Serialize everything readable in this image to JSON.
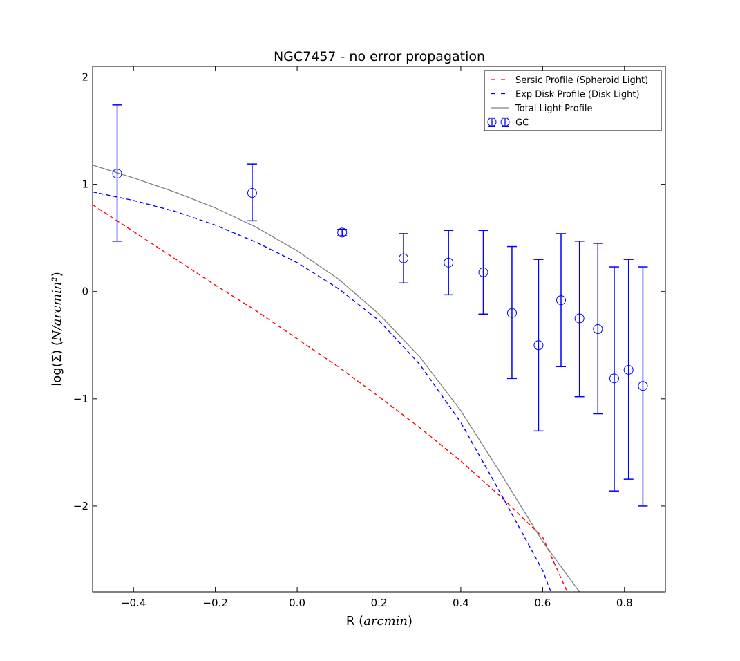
{
  "chart_data": {
    "type": "line",
    "title": "NGC7457 - no error propagation",
    "xlabel": {
      "prefix": "R (",
      "math": "arcmin",
      "suffix": ")"
    },
    "ylabel": {
      "prefix": "log(Σ) (",
      "math": "N/arcmin²",
      "suffix": ")"
    },
    "xlim": [
      -0.5,
      0.9
    ],
    "ylim": [
      -2.8,
      2.1
    ],
    "xticks": [
      -0.4,
      -0.2,
      0.0,
      0.2,
      0.4,
      0.6,
      0.8
    ],
    "xtick_labels": [
      "−0.4",
      "−0.2",
      "0.0",
      "0.2",
      "0.4",
      "0.6",
      "0.8"
    ],
    "yticks": [
      -2,
      -1,
      0,
      1,
      2
    ],
    "ytick_labels": [
      "−2",
      "−1",
      "0",
      "1",
      "2"
    ],
    "grid": false,
    "legend_position": "top-right",
    "series": [
      {
        "name": "Sersic Profile (Spheroid Light)",
        "kind": "line",
        "color": "#ff0000",
        "dash": "dashed",
        "x": [
          -0.5,
          -0.4,
          -0.3,
          -0.2,
          -0.1,
          0.0,
          0.1,
          0.2,
          0.3,
          0.4,
          0.5,
          0.6,
          0.66
        ],
        "y": [
          0.81,
          0.56,
          0.31,
          0.06,
          -0.18,
          -0.44,
          -0.7,
          -0.98,
          -1.27,
          -1.58,
          -1.92,
          -2.29,
          -2.8
        ]
      },
      {
        "name": "Exp Disk Profile (Disk Light)",
        "kind": "line",
        "color": "#0000ff",
        "dash": "dashed",
        "x": [
          -0.5,
          -0.4,
          -0.3,
          -0.2,
          -0.1,
          0.0,
          0.1,
          0.2,
          0.3,
          0.4,
          0.5,
          0.6,
          0.62
        ],
        "y": [
          0.93,
          0.85,
          0.75,
          0.62,
          0.46,
          0.27,
          0.03,
          -0.27,
          -0.68,
          -1.22,
          -1.9,
          -2.6,
          -2.8
        ]
      },
      {
        "name": "Total Light Profile",
        "kind": "line",
        "color": "#808080",
        "dash": "solid",
        "x": [
          -0.5,
          -0.4,
          -0.3,
          -0.2,
          -0.1,
          0.0,
          0.1,
          0.2,
          0.3,
          0.4,
          0.5,
          0.6,
          0.69
        ],
        "y": [
          1.18,
          1.06,
          0.93,
          0.78,
          0.6,
          0.38,
          0.12,
          -0.21,
          -0.61,
          -1.11,
          -1.71,
          -2.33,
          -2.8
        ]
      },
      {
        "name": "GC",
        "kind": "errorbar",
        "color": "#0000ff",
        "x": [
          -0.44,
          -0.11,
          0.11,
          0.26,
          0.37,
          0.455,
          0.525,
          0.59,
          0.645,
          0.69,
          0.735,
          0.775,
          0.81,
          0.845
        ],
        "y": [
          1.1,
          0.92,
          0.55,
          0.31,
          0.27,
          0.18,
          -0.2,
          -0.5,
          -0.08,
          -0.25,
          -0.35,
          -0.81,
          -0.73,
          -0.88
        ],
        "ylow": [
          0.47,
          0.66,
          0.52,
          0.08,
          -0.03,
          -0.21,
          -0.81,
          -1.3,
          -0.7,
          -0.98,
          -1.14,
          -1.86,
          -1.75,
          -2.0
        ],
        "yhigh": [
          1.74,
          1.19,
          0.58,
          0.54,
          0.57,
          0.57,
          0.42,
          0.3,
          0.54,
          0.47,
          0.45,
          0.23,
          0.3,
          0.23
        ]
      }
    ]
  }
}
